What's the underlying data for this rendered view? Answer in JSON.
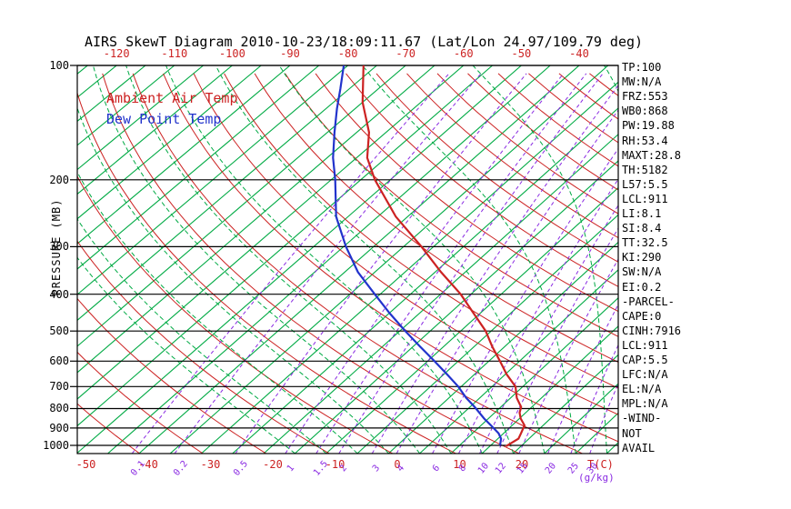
{
  "title": "AIRS SkewT Diagram 2010-10-23/18:09:11.67 (Lat/Lon 24.97/109.79 deg)",
  "legend": {
    "air": "Ambient Air Temp",
    "dew": "Dew Point Temp"
  },
  "axes": {
    "pressure_label": "PRESSURE (MB)",
    "pressure_unit": "MB",
    "pressure_ticks": [
      100,
      200,
      300,
      400,
      500,
      600,
      700,
      800,
      900,
      1000
    ],
    "top_temp_labels": [
      -120,
      -110,
      -100,
      -90,
      -80,
      -70,
      -60,
      -50,
      -40
    ],
    "bottom_temp_labels": [
      -50,
      -40,
      -30,
      -20,
      -10,
      0,
      10,
      20
    ],
    "temp_unit": "T(C)",
    "mixing_labels": [
      0.1,
      0.2,
      0.5,
      1,
      1.5,
      2,
      3,
      4,
      6,
      8,
      10,
      12,
      15,
      20,
      25,
      30
    ],
    "mixing_unit": "(g/kg)"
  },
  "stats": [
    "TP:100",
    "MW:N/A",
    "FRZ:553",
    "WB0:868",
    "PW:19.88",
    "RH:53.4",
    "MAXT:28.8",
    "TH:5182",
    "L57:5.5",
    "LCL:911",
    "LI:8.1",
    "SI:8.4",
    "TT:32.5",
    "KI:290",
    "SW:N/A",
    "EI:0.2",
    "-PARCEL-",
    "CAPE:0",
    "CINH:7916",
    "LCL:911",
    "CAP:5.5",
    "LFC:N/A",
    "EL:N/A",
    "MPL:N/A",
    "-WIND-",
    "NOT",
    "AVAIL"
  ],
  "colors": {
    "isotherm_green": "#00AA44",
    "adiabat_red": "#CC2222",
    "mixing_purple": "#8A2BE2",
    "temp_curve_red": "#CC2222",
    "dew_curve_blue": "#2233CC",
    "axis_black": "#000000",
    "background": "#FFFFFF"
  },
  "chart_data": {
    "type": "line",
    "title": "AIRS SkewT Diagram 2010-10-23/18:09:11.67 (Lat/Lon 24.97/109.79 deg)",
    "xlabel": "Temperature (C), skewed",
    "ylabel": "Pressure (MB), log scale",
    "ylim": [
      1050,
      100
    ],
    "xlim_bottom_c": [
      -55,
      35
    ],
    "grid": "skew-t log-p",
    "legend_position": "upper-left",
    "series": [
      {
        "name": "Ambient Air Temp",
        "color": "#CC2222",
        "points": [
          [
            1005,
            17.6
          ],
          [
            960,
            18.3
          ],
          [
            930,
            17.8
          ],
          [
            886,
            17.0
          ],
          [
            850,
            15.2
          ],
          [
            820,
            14.0
          ],
          [
            793,
            13.3
          ],
          [
            750,
            11.0
          ],
          [
            700,
            8.8
          ],
          [
            650,
            5.2
          ],
          [
            600,
            1.8
          ],
          [
            550,
            -2.0
          ],
          [
            500,
            -5.9
          ],
          [
            450,
            -11.0
          ],
          [
            400,
            -16.7
          ],
          [
            350,
            -24.0
          ],
          [
            300,
            -32.0
          ],
          [
            250,
            -42.0
          ],
          [
            200,
            -52.6
          ],
          [
            175,
            -58.2
          ],
          [
            150,
            -62.9
          ],
          [
            125,
            -70.0
          ],
          [
            100,
            -77.3
          ]
        ]
      },
      {
        "name": "Dew Point Temp",
        "color": "#2233CC",
        "points": [
          [
            1000,
            16.5
          ],
          [
            960,
            15.5
          ],
          [
            930,
            14.2
          ],
          [
            886,
            11.6
          ],
          [
            850,
            9.3
          ],
          [
            793,
            5.8
          ],
          [
            750,
            2.8
          ],
          [
            700,
            -0.5
          ],
          [
            650,
            -4.5
          ],
          [
            600,
            -8.9
          ],
          [
            550,
            -13.8
          ],
          [
            500,
            -19.1
          ],
          [
            450,
            -24.8
          ],
          [
            400,
            -30.9
          ],
          [
            350,
            -37.8
          ],
          [
            300,
            -44.6
          ],
          [
            250,
            -52.0
          ],
          [
            200,
            -59.3
          ],
          [
            175,
            -64.0
          ],
          [
            150,
            -68.8
          ],
          [
            130,
            -73.1
          ],
          [
            115,
            -76.6
          ],
          [
            100,
            -80.7
          ]
        ]
      }
    ],
    "background": {
      "isotherms_c": {
        "min": -160,
        "max": 50,
        "step": 5
      },
      "dry_adiabats_k": {
        "min": 200,
        "max": 500,
        "step": 10
      },
      "moist_adiabats_c": {
        "min": -15,
        "max": 45,
        "step": 5
      },
      "mixing_ratio_gkg": [
        0.1,
        0.2,
        0.5,
        1,
        1.5,
        2,
        3,
        4,
        6,
        8,
        10,
        12,
        15,
        20,
        25,
        30,
        40
      ]
    }
  }
}
